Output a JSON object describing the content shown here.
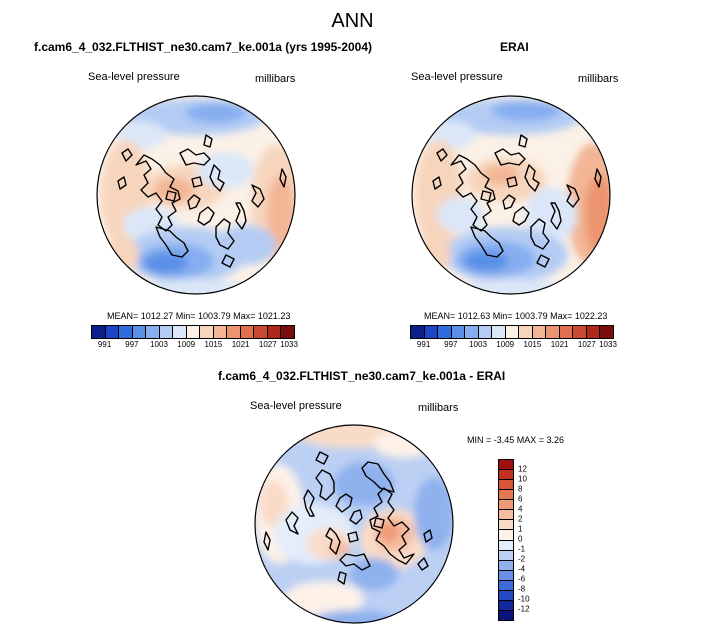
{
  "figure": {
    "title": "ANN"
  },
  "panels": {
    "model": {
      "title": "f.cam6_4_032.FLTHIST_ne30.cam7_ke.001a (yrs 1995-2004)",
      "variable": "Sea-level pressure",
      "units": "millibars",
      "stats": "MEAN= 1012.27  Min= 1003.79  Max= 1021.23",
      "colorbar": {
        "tick_labels": [
          "991",
          "997",
          "1003",
          "1009",
          "1015",
          "1021",
          "1027",
          "1033"
        ],
        "colors": [
          "#0a1e8c",
          "#1d45c8",
          "#2f6cdd",
          "#5a8fe8",
          "#86aef0",
          "#b4ccf4",
          "#dbe7f8",
          "#fbf1e7",
          "#f7d5bd",
          "#f2b695",
          "#ec9470",
          "#e2704e",
          "#cc4a32",
          "#b02819",
          "#7a0c0c"
        ]
      }
    },
    "obs": {
      "title": "ERAI",
      "variable": "Sea-level pressure",
      "units": "millibars",
      "stats": "MEAN= 1012.63  Min= 1003.79  Max= 1022.23",
      "colorbar": {
        "tick_labels": [
          "991",
          "997",
          "1003",
          "1009",
          "1015",
          "1021",
          "1027",
          "1033"
        ],
        "colors": [
          "#0a1e8c",
          "#1d45c8",
          "#2f6cdd",
          "#5a8fe8",
          "#86aef0",
          "#b4ccf4",
          "#dbe7f8",
          "#fbf1e7",
          "#f7d5bd",
          "#f2b695",
          "#ec9470",
          "#e2704e",
          "#cc4a32",
          "#b02819",
          "#7a0c0c"
        ]
      }
    },
    "diff": {
      "title": "f.cam6_4_032.FLTHIST_ne30.cam7_ke.001a - ERAI",
      "variable": "Sea-level pressure",
      "units": "millibars",
      "stats": "MIN =  -3.45 MAX =   3.26",
      "colorbar": {
        "tick_labels": [
          "12",
          "10",
          "8",
          "6",
          "4",
          "2",
          "1",
          "0",
          "-1",
          "-2",
          "-4",
          "-6",
          "-8",
          "-10",
          "-12"
        ],
        "colors": [
          "#9e1010",
          "#c3301f",
          "#d85436",
          "#e57752",
          "#ee9a77",
          "#f4bda0",
          "#f9dcc8",
          "#fdf1e8",
          "#e4edfa",
          "#bcd0f4",
          "#8fb1ee",
          "#6790e6",
          "#3e6bdc",
          "#2248c4",
          "#11289e",
          "#0a147a"
        ]
      }
    }
  },
  "chart_data": [
    {
      "type": "heatmap",
      "projection": "north polar stereographic",
      "title": "f.cam6_4_032.FLTHIST_ne30.cam7_ke.001a (yrs 1995-2004)",
      "variable": "Sea-level pressure",
      "units": "millibars",
      "mean": 1012.27,
      "min": 1003.79,
      "max": 1021.23,
      "contour_levels": [
        991,
        994,
        997,
        1000,
        1003,
        1006,
        1009,
        1012,
        1015,
        1018,
        1021,
        1024,
        1027,
        1030,
        1033
      ]
    },
    {
      "type": "heatmap",
      "projection": "north polar stereographic",
      "title": "ERAI",
      "variable": "Sea-level pressure",
      "units": "millibars",
      "mean": 1012.63,
      "min": 1003.79,
      "max": 1022.23,
      "contour_levels": [
        991,
        994,
        997,
        1000,
        1003,
        1006,
        1009,
        1012,
        1015,
        1018,
        1021,
        1024,
        1027,
        1030,
        1033
      ]
    },
    {
      "type": "heatmap",
      "projection": "north polar stereographic",
      "title": "f.cam6_4_032.FLTHIST_ne30.cam7_ke.001a - ERAI",
      "variable": "Sea-level pressure",
      "units": "millibars",
      "min": -3.45,
      "max": 3.26,
      "contour_levels": [
        -12,
        -10,
        -8,
        -6,
        -4,
        -2,
        -1,
        0,
        1,
        2,
        4,
        6,
        8,
        10,
        12
      ]
    }
  ]
}
